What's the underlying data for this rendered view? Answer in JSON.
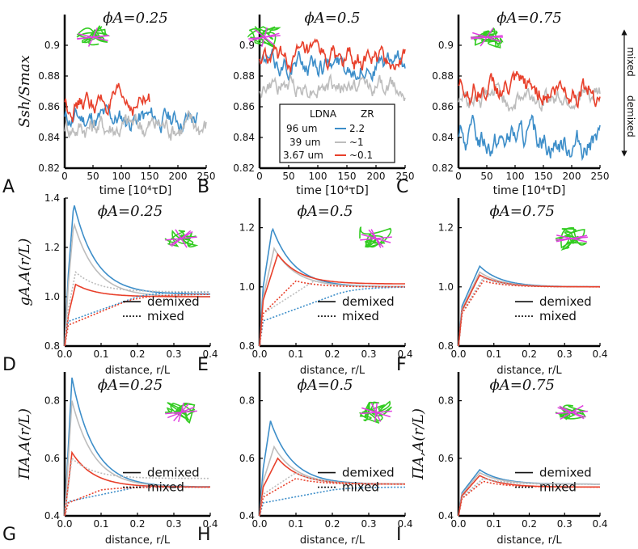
{
  "colors": {
    "long": "#3d8ec9",
    "mid": "#bdbdbd",
    "short": "#e8402b",
    "axis": "#000000",
    "dna": "#33cc22",
    "rod": "#e040e0"
  },
  "chart_data": [
    {
      "id": "A",
      "type": "line",
      "letter": "A",
      "title": "ϕA=0.25",
      "xlabel": "time [10⁴τD]",
      "ylabel": "Ssh/Smax",
      "xlim": [
        0,
        250
      ],
      "ylim": [
        0.82,
        0.92
      ],
      "xticks": [
        "0",
        "50",
        "100",
        "150",
        "200",
        "250"
      ],
      "yticks": [
        "0.82",
        "0.84",
        "0.86",
        "0.88",
        "0.9"
      ],
      "series": [
        {
          "name": "96 um",
          "zr": "2.2",
          "mean": 0.852,
          "amp": 0.008,
          "end": 235
        },
        {
          "name": "39 um",
          "zr": "~1",
          "mean": 0.848,
          "amp": 0.009,
          "end": 250
        },
        {
          "name": "3.67 um",
          "zr": "~0.1",
          "mean": 0.862,
          "amp": 0.008,
          "end": 150
        }
      ]
    },
    {
      "id": "B",
      "type": "line",
      "letter": "B",
      "title": "ϕA=0.5",
      "xlabel": "time [10⁴τD]",
      "ylabel": "",
      "xlim": [
        0,
        250
      ],
      "ylim": [
        0.82,
        0.92
      ],
      "xticks": [
        "0",
        "50",
        "100",
        "150",
        "200",
        "250"
      ],
      "yticks": [
        "0.82",
        "0.84",
        "0.86",
        "0.88",
        "0.9"
      ],
      "series": [
        {
          "name": "96 um",
          "zr": "2.2",
          "mean": 0.888,
          "amp": 0.008,
          "end": 250
        },
        {
          "name": "39 um",
          "zr": "~1",
          "mean": 0.873,
          "amp": 0.007,
          "end": 250
        },
        {
          "name": "3.67 um",
          "zr": "~0.1",
          "mean": 0.89,
          "amp": 0.008,
          "end": 250
        }
      ]
    },
    {
      "id": "C",
      "type": "line",
      "letter": "C",
      "title": "ϕA=0.75",
      "xlabel": "time [10⁴τD]",
      "ylabel": "",
      "xlim": [
        0,
        250
      ],
      "ylim": [
        0.82,
        0.92
      ],
      "xticks": [
        "0",
        "50",
        "100",
        "150",
        "200",
        "250"
      ],
      "yticks": [
        "0.82",
        "0.84",
        "0.86",
        "0.88",
        "0.9"
      ],
      "series": [
        {
          "name": "96 um",
          "zr": "2.2",
          "mean": 0.838,
          "amp": 0.01,
          "end": 250
        },
        {
          "name": "39 um",
          "zr": "~1",
          "mean": 0.866,
          "amp": 0.008,
          "end": 250
        },
        {
          "name": "3.67 um",
          "zr": "~0.1",
          "mean": 0.872,
          "amp": 0.009,
          "end": 250
        }
      ]
    },
    {
      "id": "D",
      "type": "line",
      "letter": "D",
      "title": "ϕA=0.25",
      "xlabel": "distance, r/L",
      "ylabel": "gA,A(r/L)",
      "xlim": [
        0,
        0.4
      ],
      "ylim": [
        0.8,
        1.4
      ],
      "xticks": [
        "0.0",
        "0.1",
        "0.2",
        "0.3",
        "0.4"
      ],
      "yticks": [
        "0.8",
        "1.0",
        "1.2",
        "1.4"
      ],
      "series": [
        {
          "name": "96 um demixed",
          "peak": 1.38,
          "peak_x": 0.025,
          "end": 1.01,
          "style": "solid"
        },
        {
          "name": "39 um demixed",
          "peak": 1.3,
          "peak_x": 0.025,
          "end": 1.0,
          "style": "solid"
        },
        {
          "name": "3.67 um demixed",
          "peak": 1.05,
          "peak_x": 0.03,
          "end": 1.0,
          "style": "solid"
        },
        {
          "name": "96 um mixed",
          "peak": 1.0,
          "peak_x": 0.2,
          "end": 1.02,
          "style": "dotted"
        },
        {
          "name": "39 um mixed",
          "peak": 1.1,
          "peak_x": 0.03,
          "end": 1.02,
          "style": "dotted"
        },
        {
          "name": "3.67 um mixed",
          "peak": 0.97,
          "peak_x": 0.15,
          "end": 1.01,
          "style": "dotted"
        }
      ],
      "legend": {
        "solid": "demixed",
        "dotted": "mixed"
      }
    },
    {
      "id": "E",
      "type": "line",
      "letter": "E",
      "title": "ϕA=0.5",
      "xlabel": "distance, r/L",
      "ylabel": "",
      "xlim": [
        0,
        0.4
      ],
      "ylim": [
        0.8,
        1.3
      ],
      "xticks": [
        "0.0",
        "0.1",
        "0.2",
        "0.3",
        "0.4"
      ],
      "yticks": [
        "0.8",
        "1.0",
        "1.2"
      ],
      "series": [
        {
          "name": "96 um demixed",
          "peak": 1.2,
          "peak_x": 0.035,
          "end": 1.0,
          "style": "solid"
        },
        {
          "name": "39 um demixed",
          "peak": 1.13,
          "peak_x": 0.04,
          "end": 1.0,
          "style": "solid"
        },
        {
          "name": "3.67 um demixed",
          "peak": 1.11,
          "peak_x": 0.05,
          "end": 1.01,
          "style": "solid"
        },
        {
          "name": "96 um mixed",
          "peak": 0.97,
          "peak_x": 0.2,
          "end": 1.0,
          "style": "dotted"
        },
        {
          "name": "39 um mixed",
          "peak": 1.02,
          "peak_x": 0.15,
          "end": 1.0,
          "style": "dotted"
        },
        {
          "name": "3.67 um mixed",
          "peak": 1.02,
          "peak_x": 0.1,
          "end": 1.0,
          "style": "dotted"
        }
      ],
      "legend": {
        "solid": "demixed",
        "dotted": "mixed"
      }
    },
    {
      "id": "F",
      "type": "line",
      "letter": "F",
      "title": "ϕA=0.75",
      "xlabel": "distance, r/L",
      "ylabel": "",
      "xlim": [
        0,
        0.4
      ],
      "ylim": [
        0.8,
        1.3
      ],
      "xticks": [
        "0.0",
        "0.1",
        "0.2",
        "0.3",
        "0.4"
      ],
      "yticks": [
        "0.8",
        "1.0",
        "1.2"
      ],
      "series": [
        {
          "name": "96 um demixed",
          "peak": 1.07,
          "peak_x": 0.06,
          "end": 1.0,
          "style": "solid"
        },
        {
          "name": "39 um demixed",
          "peak": 1.05,
          "peak_x": 0.06,
          "end": 1.0,
          "style": "solid"
        },
        {
          "name": "3.67 um demixed",
          "peak": 1.04,
          "peak_x": 0.06,
          "end": 1.0,
          "style": "solid"
        },
        {
          "name": "96 um mixed",
          "peak": 1.03,
          "peak_x": 0.07,
          "end": 1.0,
          "style": "dotted"
        },
        {
          "name": "39 um mixed",
          "peak": 1.03,
          "peak_x": 0.07,
          "end": 1.0,
          "style": "dotted"
        },
        {
          "name": "3.67 um mixed",
          "peak": 1.02,
          "peak_x": 0.07,
          "end": 1.0,
          "style": "dotted"
        }
      ],
      "legend": {
        "solid": "demixed",
        "dotted": "mixed"
      }
    },
    {
      "id": "G",
      "type": "line",
      "letter": "G",
      "title": "ϕA=0.25",
      "xlabel": "distance, r/L",
      "ylabel": "ΠA,A(r/L)",
      "xlim": [
        0,
        0.4
      ],
      "ylim": [
        0.4,
        0.9
      ],
      "xticks": [
        "0.0",
        "0.1",
        "0.2",
        "0.3",
        "0.4"
      ],
      "yticks": [
        "0.4",
        "0.6",
        "0.8"
      ],
      "series": [
        {
          "name": "96 um demixed",
          "peak": 0.88,
          "peak_x": 0.02,
          "end": 0.5,
          "style": "solid"
        },
        {
          "name": "39 um demixed",
          "peak": 0.8,
          "peak_x": 0.02,
          "end": 0.5,
          "style": "solid"
        },
        {
          "name": "3.67 um demixed",
          "peak": 0.62,
          "peak_x": 0.02,
          "end": 0.5,
          "style": "solid"
        },
        {
          "name": "96 um mixed",
          "peak": 0.5,
          "peak_x": 0.2,
          "end": 0.5,
          "style": "dotted"
        },
        {
          "name": "39 um mixed",
          "peak": 0.6,
          "peak_x": 0.02,
          "end": 0.53,
          "style": "dotted"
        },
        {
          "name": "3.67 um mixed",
          "peak": 0.49,
          "peak_x": 0.1,
          "end": 0.5,
          "style": "dotted"
        }
      ],
      "legend": {
        "solid": "demixed",
        "dotted": "mixed"
      }
    },
    {
      "id": "H",
      "type": "line",
      "letter": "H",
      "title": "ϕA=0.5",
      "xlabel": "distance, r/L",
      "ylabel": "",
      "xlim": [
        0,
        0.4
      ],
      "ylim": [
        0.4,
        0.9
      ],
      "xticks": [
        "0.0",
        "0.1",
        "0.2",
        "0.3",
        "0.4"
      ],
      "yticks": [
        "0.4",
        "0.6",
        "0.8"
      ],
      "series": [
        {
          "name": "96 um demixed",
          "peak": 0.73,
          "peak_x": 0.03,
          "end": 0.51,
          "style": "solid"
        },
        {
          "name": "39 um demixed",
          "peak": 0.64,
          "peak_x": 0.04,
          "end": 0.51,
          "style": "solid"
        },
        {
          "name": "3.67 um demixed",
          "peak": 0.6,
          "peak_x": 0.05,
          "end": 0.51,
          "style": "solid"
        },
        {
          "name": "96 um mixed",
          "peak": 0.49,
          "peak_x": 0.2,
          "end": 0.5,
          "style": "dotted"
        },
        {
          "name": "39 um mixed",
          "peak": 0.55,
          "peak_x": 0.1,
          "end": 0.51,
          "style": "dotted"
        },
        {
          "name": "3.67 um mixed",
          "peak": 0.53,
          "peak_x": 0.1,
          "end": 0.51,
          "style": "dotted"
        }
      ],
      "legend": {
        "solid": "demixed",
        "dotted": "mixed"
      }
    },
    {
      "id": "I",
      "type": "line",
      "letter": "I",
      "title": "ϕA=0.75",
      "xlabel": "distance, r/L",
      "ylabel": "ΠA,A(r/L)",
      "xlim": [
        0,
        0.4
      ],
      "ylim": [
        0.4,
        0.9
      ],
      "xticks": [
        "0.0",
        "0.1",
        "0.2",
        "0.3",
        "0.4"
      ],
      "yticks": [
        "0.4",
        "0.6",
        "0.8"
      ],
      "series": [
        {
          "name": "96 um demixed",
          "peak": 0.56,
          "peak_x": 0.06,
          "end": 0.51,
          "style": "solid"
        },
        {
          "name": "39 um demixed",
          "peak": 0.55,
          "peak_x": 0.06,
          "end": 0.51,
          "style": "solid"
        },
        {
          "name": "3.67 um demixed",
          "peak": 0.54,
          "peak_x": 0.06,
          "end": 0.5,
          "style": "solid"
        },
        {
          "name": "96 um mixed",
          "peak": 0.53,
          "peak_x": 0.07,
          "end": 0.51,
          "style": "dotted"
        },
        {
          "name": "39 um mixed",
          "peak": 0.53,
          "peak_x": 0.07,
          "end": 0.51,
          "style": "dotted"
        },
        {
          "name": "3.67 um mixed",
          "peak": 0.52,
          "peak_x": 0.07,
          "end": 0.5,
          "style": "dotted"
        }
      ],
      "legend": {
        "solid": "demixed",
        "dotted": "mixed"
      }
    }
  ],
  "legend_top": {
    "header_l": "LDNA",
    "header_zr": "ZR",
    "rows": [
      {
        "l": "96 um",
        "zr": "2.2"
      },
      {
        "l": "39 um",
        "zr": "~1"
      },
      {
        "l": "3.67 um",
        "zr": "~0.1"
      }
    ]
  },
  "side_labels": {
    "mixed": "mixed",
    "demixed": "demixed"
  }
}
